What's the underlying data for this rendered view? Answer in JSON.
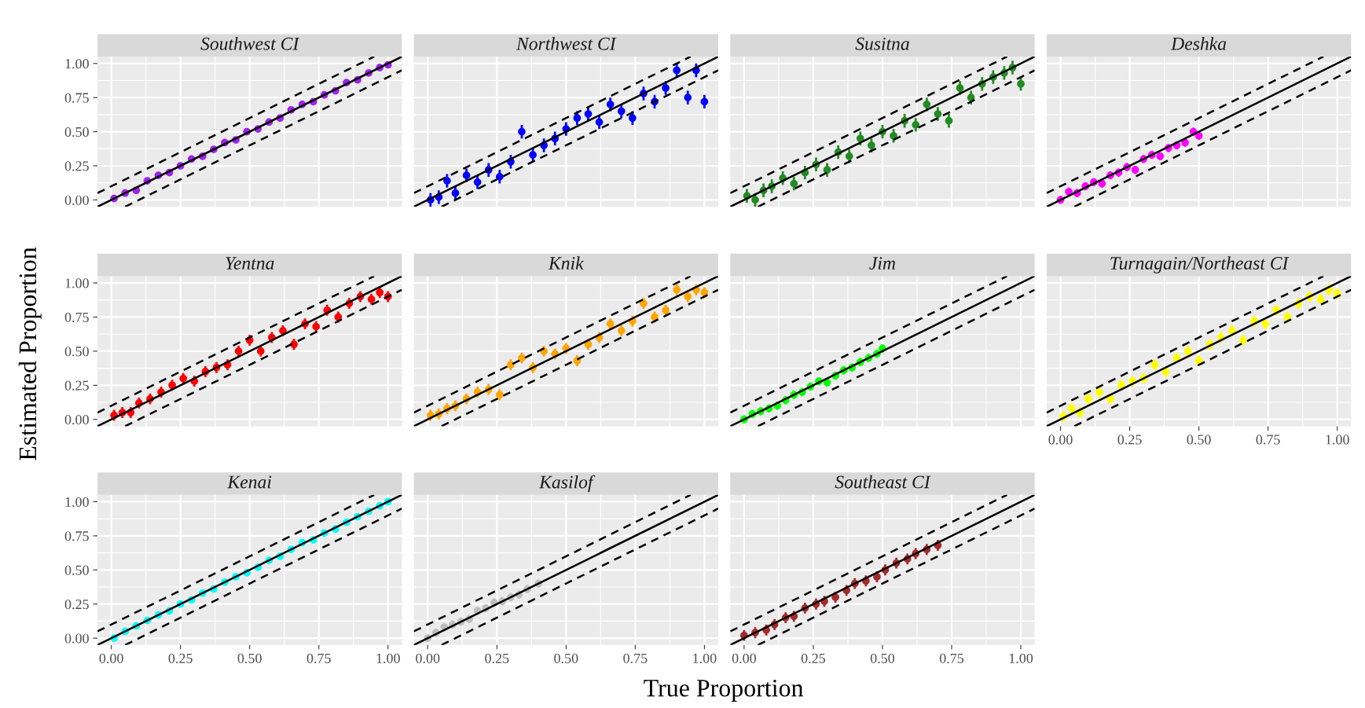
{
  "chart_data": [
    {
      "type": "scatter",
      "title": "Southwest CI",
      "ylabel": "Estimated Proportion",
      "tick_labels": "y",
      "grid": true,
      "xlim": [
        -0.05,
        1.05
      ],
      "ylim": [
        -0.05,
        1.05
      ],
      "xticks": [
        {
          "value": 0,
          "label": null
        },
        {
          "value": 0.25,
          "label": null
        },
        {
          "value": 0.5,
          "label": null
        },
        {
          "value": 0.75,
          "label": null
        },
        {
          "value": 1,
          "label": null
        }
      ],
      "yticks": [
        {
          "value": 0,
          "label": "0.00"
        },
        {
          "value": 0.25,
          "label": "0.25"
        },
        {
          "value": 0.5,
          "label": "0.50"
        },
        {
          "value": 0.75,
          "label": "0.75"
        },
        {
          "value": 1,
          "label": "1.00"
        }
      ],
      "series": [
        {
          "marker": "circle",
          "color": "#a020f0",
          "x": [
            0.01,
            0.05,
            0.09,
            0.13,
            0.17,
            0.21,
            0.25,
            0.29,
            0.33,
            0.37,
            0.41,
            0.45,
            0.49,
            0.53,
            0.57,
            0.61,
            0.65,
            0.69,
            0.73,
            0.77,
            0.81,
            0.85,
            0.89,
            0.93,
            0.97,
            1.0
          ],
          "values": [
            0.01,
            0.05,
            0.07,
            0.14,
            0.18,
            0.2,
            0.25,
            0.3,
            0.32,
            0.37,
            0.42,
            0.44,
            0.5,
            0.52,
            0.57,
            0.6,
            0.66,
            0.7,
            0.72,
            0.77,
            0.8,
            0.86,
            0.88,
            0.93,
            0.97,
            0.99
          ],
          "errors": [
            0.02,
            0.02,
            0.02,
            0.02,
            0.02,
            0.02,
            0.02,
            0.02,
            0.02,
            0.02,
            0.02,
            0.02,
            0.02,
            0.02,
            0.02,
            0.02,
            0.02,
            0.02,
            0.02,
            0.02,
            0.02,
            0.02,
            0.02,
            0.02,
            0.02,
            0.02
          ]
        },
        {
          "type": "line",
          "color": "#000000",
          "line_style": "solid",
          "x": [
            -0.05,
            1.05
          ],
          "values": [
            -0.05,
            1.05
          ]
        },
        {
          "type": "line",
          "color": "#000000",
          "line_style": "dashed",
          "x": [
            -0.05,
            0.95
          ],
          "values": [
            0.05,
            1.05
          ]
        },
        {
          "type": "line",
          "color": "#000000",
          "line_style": "dashed",
          "x": [
            0.05,
            1.05
          ],
          "values": [
            -0.05,
            0.95
          ]
        }
      ]
    },
    {
      "type": "scatter",
      "title": "Northwest CI",
      "tick_labels": false,
      "grid": true,
      "xlim": [
        -0.05,
        1.05
      ],
      "ylim": [
        -0.05,
        1.05
      ],
      "xticks": [
        {
          "value": 0,
          "label": null
        },
        {
          "value": 0.25,
          "label": null
        },
        {
          "value": 0.5,
          "label": null
        },
        {
          "value": 0.75,
          "label": null
        },
        {
          "value": 1,
          "label": null
        }
      ],
      "yticks": [
        {
          "value": 0,
          "label": null
        },
        {
          "value": 0.25,
          "label": null
        },
        {
          "value": 0.5,
          "label": null
        },
        {
          "value": 0.75,
          "label": null
        },
        {
          "value": 1,
          "label": null
        }
      ],
      "series": [
        {
          "marker": "circle",
          "color": "#0000ff",
          "x": [
            0.01,
            0.04,
            0.07,
            0.1,
            0.14,
            0.18,
            0.22,
            0.26,
            0.3,
            0.34,
            0.38,
            0.42,
            0.46,
            0.5,
            0.54,
            0.58,
            0.62,
            0.66,
            0.7,
            0.74,
            0.78,
            0.82,
            0.86,
            0.9,
            0.94,
            0.97,
            1.0
          ],
          "values": [
            0.0,
            0.02,
            0.14,
            0.05,
            0.18,
            0.13,
            0.22,
            0.17,
            0.28,
            0.5,
            0.33,
            0.4,
            0.45,
            0.52,
            0.6,
            0.63,
            0.57,
            0.7,
            0.65,
            0.6,
            0.78,
            0.72,
            0.82,
            0.95,
            0.75,
            0.95,
            0.72
          ],
          "errors": [
            0.05,
            0.05,
            0.05,
            0.05,
            0.05,
            0.05,
            0.05,
            0.05,
            0.05,
            0.05,
            0.05,
            0.05,
            0.05,
            0.05,
            0.05,
            0.05,
            0.05,
            0.05,
            0.05,
            0.05,
            0.05,
            0.05,
            0.05,
            0.05,
            0.05,
            0.05,
            0.05
          ]
        },
        {
          "type": "line",
          "color": "#000000",
          "line_style": "solid",
          "x": [
            -0.05,
            1.05
          ],
          "values": [
            -0.05,
            1.05
          ]
        },
        {
          "type": "line",
          "color": "#000000",
          "line_style": "dashed",
          "x": [
            -0.05,
            0.95
          ],
          "values": [
            0.05,
            1.05
          ]
        },
        {
          "type": "line",
          "color": "#000000",
          "line_style": "dashed",
          "x": [
            0.05,
            1.05
          ],
          "values": [
            -0.05,
            0.95
          ]
        }
      ]
    },
    {
      "type": "scatter",
      "title": "Susitna",
      "tick_labels": false,
      "grid": true,
      "xlim": [
        -0.05,
        1.05
      ],
      "ylim": [
        -0.05,
        1.05
      ],
      "xticks": [
        {
          "value": 0,
          "label": null
        },
        {
          "value": 0.25,
          "label": null
        },
        {
          "value": 0.5,
          "label": null
        },
        {
          "value": 0.75,
          "label": null
        },
        {
          "value": 1,
          "label": null
        }
      ],
      "yticks": [
        {
          "value": 0,
          "label": null
        },
        {
          "value": 0.25,
          "label": null
        },
        {
          "value": 0.5,
          "label": null
        },
        {
          "value": 0.75,
          "label": null
        },
        {
          "value": 1,
          "label": null
        }
      ],
      "series": [
        {
          "marker": "circle",
          "color": "#228b22",
          "x": [
            0.01,
            0.04,
            0.07,
            0.1,
            0.14,
            0.18,
            0.22,
            0.26,
            0.3,
            0.34,
            0.38,
            0.42,
            0.46,
            0.5,
            0.54,
            0.58,
            0.62,
            0.66,
            0.7,
            0.74,
            0.78,
            0.82,
            0.86,
            0.9,
            0.94,
            0.97,
            1.0
          ],
          "values": [
            0.03,
            0.0,
            0.07,
            0.1,
            0.16,
            0.12,
            0.2,
            0.26,
            0.22,
            0.35,
            0.32,
            0.45,
            0.4,
            0.5,
            0.47,
            0.58,
            0.55,
            0.7,
            0.63,
            0.58,
            0.82,
            0.75,
            0.85,
            0.9,
            0.93,
            0.97,
            0.85
          ],
          "errors": [
            0.05,
            0.05,
            0.05,
            0.05,
            0.05,
            0.05,
            0.05,
            0.05,
            0.05,
            0.05,
            0.05,
            0.05,
            0.05,
            0.05,
            0.05,
            0.05,
            0.05,
            0.05,
            0.05,
            0.05,
            0.05,
            0.05,
            0.05,
            0.05,
            0.05,
            0.05,
            0.05
          ]
        },
        {
          "type": "line",
          "color": "#000000",
          "line_style": "solid",
          "x": [
            -0.05,
            1.05
          ],
          "values": [
            -0.05,
            1.05
          ]
        },
        {
          "type": "line",
          "color": "#000000",
          "line_style": "dashed",
          "x": [
            -0.05,
            0.95
          ],
          "values": [
            0.05,
            1.05
          ]
        },
        {
          "type": "line",
          "color": "#000000",
          "line_style": "dashed",
          "x": [
            0.05,
            1.05
          ],
          "values": [
            -0.05,
            0.95
          ]
        }
      ]
    },
    {
      "type": "scatter",
      "title": "Deshka",
      "tick_labels": false,
      "grid": true,
      "xlim": [
        -0.05,
        1.05
      ],
      "ylim": [
        -0.05,
        1.05
      ],
      "xticks": [
        {
          "value": 0,
          "label": null
        },
        {
          "value": 0.25,
          "label": null
        },
        {
          "value": 0.5,
          "label": null
        },
        {
          "value": 0.75,
          "label": null
        },
        {
          "value": 1,
          "label": null
        }
      ],
      "yticks": [
        {
          "value": 0,
          "label": null
        },
        {
          "value": 0.25,
          "label": null
        },
        {
          "value": 0.5,
          "label": null
        },
        {
          "value": 0.75,
          "label": null
        },
        {
          "value": 1,
          "label": null
        }
      ],
      "series": [
        {
          "marker": "circle",
          "color": "#ff00ff",
          "x": [
            0.0,
            0.03,
            0.06,
            0.09,
            0.12,
            0.15,
            0.18,
            0.21,
            0.24,
            0.27,
            0.3,
            0.33,
            0.36,
            0.39,
            0.42,
            0.45,
            0.48,
            0.5
          ],
          "values": [
            0.0,
            0.06,
            0.05,
            0.1,
            0.13,
            0.12,
            0.18,
            0.2,
            0.24,
            0.22,
            0.3,
            0.33,
            0.32,
            0.38,
            0.4,
            0.42,
            0.5,
            0.47
          ],
          "errors": [
            0.03,
            0.03,
            0.03,
            0.03,
            0.03,
            0.03,
            0.03,
            0.03,
            0.03,
            0.03,
            0.03,
            0.03,
            0.03,
            0.03,
            0.03,
            0.03,
            0.03,
            0.03
          ]
        },
        {
          "type": "line",
          "color": "#000000",
          "line_style": "solid",
          "x": [
            -0.05,
            1.05
          ],
          "values": [
            -0.05,
            1.05
          ]
        },
        {
          "type": "line",
          "color": "#000000",
          "line_style": "dashed",
          "x": [
            -0.05,
            0.95
          ],
          "values": [
            0.05,
            1.05
          ]
        },
        {
          "type": "line",
          "color": "#000000",
          "line_style": "dashed",
          "x": [
            0.05,
            1.05
          ],
          "values": [
            -0.05,
            0.95
          ]
        }
      ]
    },
    {
      "type": "scatter",
      "title": "Yentna",
      "tick_labels": "y",
      "grid": true,
      "xlim": [
        -0.05,
        1.05
      ],
      "ylim": [
        -0.05,
        1.05
      ],
      "xticks": [
        {
          "value": 0,
          "label": null
        },
        {
          "value": 0.25,
          "label": null
        },
        {
          "value": 0.5,
          "label": null
        },
        {
          "value": 0.75,
          "label": null
        },
        {
          "value": 1,
          "label": null
        }
      ],
      "yticks": [
        {
          "value": 0,
          "label": "0.00"
        },
        {
          "value": 0.25,
          "label": "0.25"
        },
        {
          "value": 0.5,
          "label": "0.50"
        },
        {
          "value": 0.75,
          "label": "0.75"
        },
        {
          "value": 1,
          "label": "1.00"
        }
      ],
      "series": [
        {
          "marker": "circle",
          "color": "#ff0000",
          "x": [
            0.01,
            0.04,
            0.07,
            0.1,
            0.14,
            0.18,
            0.22,
            0.26,
            0.3,
            0.34,
            0.38,
            0.42,
            0.46,
            0.5,
            0.54,
            0.58,
            0.62,
            0.66,
            0.7,
            0.74,
            0.78,
            0.82,
            0.86,
            0.9,
            0.94,
            0.97,
            1.0
          ],
          "values": [
            0.03,
            0.05,
            0.05,
            0.12,
            0.15,
            0.2,
            0.25,
            0.3,
            0.28,
            0.35,
            0.38,
            0.4,
            0.5,
            0.58,
            0.5,
            0.6,
            0.65,
            0.55,
            0.7,
            0.68,
            0.8,
            0.75,
            0.85,
            0.9,
            0.88,
            0.93,
            0.9
          ],
          "errors": [
            0.04,
            0.04,
            0.04,
            0.04,
            0.04,
            0.04,
            0.04,
            0.04,
            0.04,
            0.04,
            0.04,
            0.04,
            0.04,
            0.04,
            0.04,
            0.04,
            0.04,
            0.04,
            0.04,
            0.04,
            0.04,
            0.04,
            0.04,
            0.04,
            0.04,
            0.04,
            0.04
          ]
        },
        {
          "type": "line",
          "color": "#000000",
          "line_style": "solid",
          "x": [
            -0.05,
            1.05
          ],
          "values": [
            -0.05,
            1.05
          ]
        },
        {
          "type": "line",
          "color": "#000000",
          "line_style": "dashed",
          "x": [
            -0.05,
            0.95
          ],
          "values": [
            0.05,
            1.05
          ]
        },
        {
          "type": "line",
          "color": "#000000",
          "line_style": "dashed",
          "x": [
            0.05,
            1.05
          ],
          "values": [
            -0.05,
            0.95
          ]
        }
      ]
    },
    {
      "type": "scatter",
      "title": "Knik",
      "tick_labels": false,
      "grid": true,
      "xlim": [
        -0.05,
        1.05
      ],
      "ylim": [
        -0.05,
        1.05
      ],
      "xticks": [
        {
          "value": 0,
          "label": null
        },
        {
          "value": 0.25,
          "label": null
        },
        {
          "value": 0.5,
          "label": null
        },
        {
          "value": 0.75,
          "label": null
        },
        {
          "value": 1,
          "label": null
        }
      ],
      "yticks": [
        {
          "value": 0,
          "label": null
        },
        {
          "value": 0.25,
          "label": null
        },
        {
          "value": 0.5,
          "label": null
        },
        {
          "value": 0.75,
          "label": null
        },
        {
          "value": 1,
          "label": null
        }
      ],
      "series": [
        {
          "marker": "circle",
          "color": "#ffa500",
          "x": [
            0.01,
            0.04,
            0.07,
            0.1,
            0.14,
            0.18,
            0.22,
            0.26,
            0.3,
            0.34,
            0.38,
            0.42,
            0.46,
            0.5,
            0.54,
            0.58,
            0.62,
            0.66,
            0.7,
            0.74,
            0.78,
            0.82,
            0.86,
            0.9,
            0.94,
            0.97,
            1.0
          ],
          "values": [
            0.03,
            0.04,
            0.08,
            0.1,
            0.15,
            0.2,
            0.22,
            0.18,
            0.4,
            0.45,
            0.38,
            0.5,
            0.48,
            0.52,
            0.43,
            0.55,
            0.6,
            0.7,
            0.65,
            0.72,
            0.85,
            0.75,
            0.8,
            0.95,
            0.9,
            0.95,
            0.93
          ],
          "errors": [
            0.04,
            0.04,
            0.04,
            0.04,
            0.04,
            0.04,
            0.04,
            0.04,
            0.04,
            0.04,
            0.04,
            0.04,
            0.04,
            0.04,
            0.04,
            0.04,
            0.04,
            0.04,
            0.04,
            0.04,
            0.04,
            0.04,
            0.04,
            0.04,
            0.04,
            0.04,
            0.04
          ]
        },
        {
          "type": "line",
          "color": "#000000",
          "line_style": "solid",
          "x": [
            -0.05,
            1.05
          ],
          "values": [
            -0.05,
            1.05
          ]
        },
        {
          "type": "line",
          "color": "#000000",
          "line_style": "dashed",
          "x": [
            -0.05,
            0.95
          ],
          "values": [
            0.05,
            1.05
          ]
        },
        {
          "type": "line",
          "color": "#000000",
          "line_style": "dashed",
          "x": [
            0.05,
            1.05
          ],
          "values": [
            -0.05,
            0.95
          ]
        }
      ]
    },
    {
      "type": "scatter",
      "title": "Jim",
      "tick_labels": false,
      "grid": true,
      "xlim": [
        -0.05,
        1.05
      ],
      "ylim": [
        -0.05,
        1.05
      ],
      "xticks": [
        {
          "value": 0,
          "label": null
        },
        {
          "value": 0.25,
          "label": null
        },
        {
          "value": 0.5,
          "label": null
        },
        {
          "value": 0.75,
          "label": null
        },
        {
          "value": 1,
          "label": null
        }
      ],
      "yticks": [
        {
          "value": 0,
          "label": null
        },
        {
          "value": 0.25,
          "label": null
        },
        {
          "value": 0.5,
          "label": null
        },
        {
          "value": 0.75,
          "label": null
        },
        {
          "value": 1,
          "label": null
        }
      ],
      "series": [
        {
          "marker": "circle",
          "color": "#00ff00",
          "x": [
            0.0,
            0.03,
            0.06,
            0.09,
            0.12,
            0.15,
            0.18,
            0.21,
            0.24,
            0.27,
            0.3,
            0.33,
            0.36,
            0.39,
            0.42,
            0.45,
            0.48,
            0.5
          ],
          "values": [
            0.0,
            0.04,
            0.06,
            0.08,
            0.1,
            0.14,
            0.18,
            0.2,
            0.24,
            0.28,
            0.27,
            0.32,
            0.36,
            0.38,
            0.42,
            0.45,
            0.48,
            0.52
          ],
          "errors": [
            0.03,
            0.03,
            0.03,
            0.03,
            0.03,
            0.03,
            0.03,
            0.03,
            0.03,
            0.03,
            0.03,
            0.03,
            0.03,
            0.03,
            0.03,
            0.03,
            0.03,
            0.03
          ]
        },
        {
          "type": "line",
          "color": "#000000",
          "line_style": "solid",
          "x": [
            -0.05,
            1.05
          ],
          "values": [
            -0.05,
            1.05
          ]
        },
        {
          "type": "line",
          "color": "#000000",
          "line_style": "dashed",
          "x": [
            -0.05,
            0.95
          ],
          "values": [
            0.05,
            1.05
          ]
        },
        {
          "type": "line",
          "color": "#000000",
          "line_style": "dashed",
          "x": [
            0.05,
            1.05
          ],
          "values": [
            -0.05,
            0.95
          ]
        }
      ]
    },
    {
      "type": "scatter",
      "title": "Turnagain/Northeast CI",
      "tick_labels": "x",
      "grid": true,
      "xlim": [
        -0.05,
        1.05
      ],
      "ylim": [
        -0.05,
        1.05
      ],
      "xticks": [
        {
          "value": 0,
          "label": "0.00"
        },
        {
          "value": 0.25,
          "label": "0.25"
        },
        {
          "value": 0.5,
          "label": "0.50"
        },
        {
          "value": 0.75,
          "label": "0.75"
        },
        {
          "value": 1,
          "label": "1.00"
        }
      ],
      "yticks": [
        {
          "value": 0,
          "label": null
        },
        {
          "value": 0.25,
          "label": null
        },
        {
          "value": 0.5,
          "label": null
        },
        {
          "value": 0.75,
          "label": null
        },
        {
          "value": 1,
          "label": null
        }
      ],
      "series": [
        {
          "marker": "circle",
          "color": "#ffff00",
          "x": [
            0.01,
            0.04,
            0.07,
            0.1,
            0.14,
            0.18,
            0.22,
            0.26,
            0.3,
            0.34,
            0.38,
            0.42,
            0.46,
            0.5,
            0.54,
            0.58,
            0.62,
            0.66,
            0.7,
            0.74,
            0.78,
            0.82,
            0.86,
            0.9,
            0.94,
            0.97,
            1.0
          ],
          "values": [
            0.02,
            0.08,
            0.05,
            0.15,
            0.2,
            0.15,
            0.25,
            0.28,
            0.3,
            0.4,
            0.35,
            0.45,
            0.5,
            0.43,
            0.55,
            0.6,
            0.65,
            0.58,
            0.72,
            0.7,
            0.8,
            0.75,
            0.85,
            0.9,
            0.88,
            0.95,
            0.92
          ],
          "errors": [
            0.04,
            0.04,
            0.04,
            0.04,
            0.04,
            0.04,
            0.04,
            0.04,
            0.04,
            0.04,
            0.04,
            0.04,
            0.04,
            0.04,
            0.04,
            0.04,
            0.04,
            0.04,
            0.04,
            0.04,
            0.04,
            0.04,
            0.04,
            0.04,
            0.04,
            0.04,
            0.04
          ]
        },
        {
          "type": "line",
          "color": "#000000",
          "line_style": "solid",
          "x": [
            -0.05,
            1.05
          ],
          "values": [
            -0.05,
            1.05
          ]
        },
        {
          "type": "line",
          "color": "#000000",
          "line_style": "dashed",
          "x": [
            -0.05,
            0.95
          ],
          "values": [
            0.05,
            1.05
          ]
        },
        {
          "type": "line",
          "color": "#000000",
          "line_style": "dashed",
          "x": [
            0.05,
            1.05
          ],
          "values": [
            -0.05,
            0.95
          ]
        }
      ]
    },
    {
      "type": "scatter",
      "title": "Kenai",
      "grid": true,
      "xlim": [
        -0.05,
        1.05
      ],
      "ylim": [
        -0.05,
        1.05
      ],
      "xticks": [
        {
          "value": 0,
          "label": "0.00"
        },
        {
          "value": 0.25,
          "label": "0.25"
        },
        {
          "value": 0.5,
          "label": "0.50"
        },
        {
          "value": 0.75,
          "label": "0.75"
        },
        {
          "value": 1,
          "label": "1.00"
        }
      ],
      "yticks": [
        {
          "value": 0,
          "label": "0.00"
        },
        {
          "value": 0.25,
          "label": "0.25"
        },
        {
          "value": 0.5,
          "label": "0.50"
        },
        {
          "value": 0.75,
          "label": "0.75"
        },
        {
          "value": 1,
          "label": "1.00"
        }
      ],
      "series": [
        {
          "marker": "circle",
          "color": "#00ffff",
          "x": [
            0.01,
            0.05,
            0.09,
            0.13,
            0.17,
            0.21,
            0.25,
            0.29,
            0.33,
            0.37,
            0.41,
            0.45,
            0.49,
            0.53,
            0.57,
            0.61,
            0.65,
            0.69,
            0.73,
            0.77,
            0.81,
            0.85,
            0.89,
            0.93,
            0.97,
            1.0
          ],
          "values": [
            0.0,
            0.05,
            0.09,
            0.13,
            0.17,
            0.2,
            0.25,
            0.28,
            0.33,
            0.36,
            0.41,
            0.45,
            0.48,
            0.52,
            0.57,
            0.6,
            0.65,
            0.7,
            0.72,
            0.77,
            0.8,
            0.85,
            0.89,
            0.93,
            0.97,
            1.0
          ],
          "errors": [
            0.02,
            0.02,
            0.02,
            0.02,
            0.02,
            0.02,
            0.02,
            0.02,
            0.02,
            0.02,
            0.02,
            0.02,
            0.02,
            0.02,
            0.02,
            0.02,
            0.02,
            0.02,
            0.02,
            0.02,
            0.02,
            0.02,
            0.02,
            0.02,
            0.02,
            0.02
          ]
        },
        {
          "type": "line",
          "color": "#000000",
          "line_style": "solid",
          "x": [
            -0.05,
            1.05
          ],
          "values": [
            -0.05,
            1.05
          ]
        },
        {
          "type": "line",
          "color": "#000000",
          "line_style": "dashed",
          "x": [
            -0.05,
            0.95
          ],
          "values": [
            0.05,
            1.05
          ]
        },
        {
          "type": "line",
          "color": "#000000",
          "line_style": "dashed",
          "x": [
            0.05,
            1.05
          ],
          "values": [
            -0.05,
            0.95
          ]
        }
      ]
    },
    {
      "type": "scatter",
      "title": "Kasilof",
      "xlabel": "True Proportion",
      "tick_labels": "x",
      "grid": true,
      "xlim": [
        -0.05,
        1.05
      ],
      "ylim": [
        -0.05,
        1.05
      ],
      "xticks": [
        {
          "value": 0,
          "label": "0.00"
        },
        {
          "value": 0.25,
          "label": "0.25"
        },
        {
          "value": 0.5,
          "label": "0.50"
        },
        {
          "value": 0.75,
          "label": "0.75"
        },
        {
          "value": 1,
          "label": "1.00"
        }
      ],
      "yticks": [
        {
          "value": 0,
          "label": null
        },
        {
          "value": 0.25,
          "label": null
        },
        {
          "value": 0.5,
          "label": null
        },
        {
          "value": 0.75,
          "label": null
        },
        {
          "value": 1,
          "label": null
        }
      ],
      "series": [
        {
          "marker": "circle",
          "color": "#bebebe",
          "x": [
            0.0,
            0.03,
            0.06,
            0.09,
            0.12,
            0.15,
            0.18,
            0.21,
            0.24,
            0.27,
            0.3,
            0.33,
            0.36,
            0.4
          ],
          "values": [
            0.0,
            0.04,
            0.08,
            0.1,
            0.12,
            0.14,
            0.2,
            0.22,
            0.26,
            0.27,
            0.3,
            0.32,
            0.36,
            0.4
          ],
          "errors": [
            0.03,
            0.03,
            0.03,
            0.03,
            0.03,
            0.03,
            0.03,
            0.03,
            0.03,
            0.03,
            0.03,
            0.03,
            0.03,
            0.03
          ]
        },
        {
          "type": "line",
          "color": "#000000",
          "line_style": "solid",
          "x": [
            -0.05,
            1.05
          ],
          "values": [
            -0.05,
            1.05
          ]
        },
        {
          "type": "line",
          "color": "#000000",
          "line_style": "dashed",
          "x": [
            -0.05,
            0.95
          ],
          "values": [
            0.05,
            1.05
          ]
        },
        {
          "type": "line",
          "color": "#000000",
          "line_style": "dashed",
          "x": [
            0.05,
            1.05
          ],
          "values": [
            -0.05,
            0.95
          ]
        }
      ]
    },
    {
      "type": "scatter",
      "title": "Southeast CI",
      "tick_labels": "x",
      "grid": true,
      "xlim": [
        -0.05,
        1.05
      ],
      "ylim": [
        -0.05,
        1.05
      ],
      "xticks": [
        {
          "value": 0,
          "label": "0.00"
        },
        {
          "value": 0.25,
          "label": "0.25"
        },
        {
          "value": 0.5,
          "label": "0.50"
        },
        {
          "value": 0.75,
          "label": "0.75"
        },
        {
          "value": 1,
          "label": "1.00"
        }
      ],
      "yticks": [
        {
          "value": 0,
          "label": null
        },
        {
          "value": 0.25,
          "label": null
        },
        {
          "value": 0.5,
          "label": null
        },
        {
          "value": 0.75,
          "label": null
        },
        {
          "value": 1,
          "label": null
        }
      ],
      "series": [
        {
          "marker": "circle",
          "color": "#a52a2a",
          "x": [
            0.0,
            0.04,
            0.08,
            0.11,
            0.15,
            0.18,
            0.22,
            0.26,
            0.29,
            0.33,
            0.37,
            0.4,
            0.44,
            0.48,
            0.51,
            0.55,
            0.59,
            0.62,
            0.66,
            0.7
          ],
          "values": [
            0.02,
            0.04,
            0.06,
            0.1,
            0.15,
            0.16,
            0.22,
            0.25,
            0.27,
            0.3,
            0.35,
            0.4,
            0.42,
            0.45,
            0.5,
            0.55,
            0.58,
            0.62,
            0.65,
            0.68
          ],
          "errors": [
            0.04,
            0.04,
            0.04,
            0.04,
            0.04,
            0.04,
            0.04,
            0.04,
            0.04,
            0.04,
            0.04,
            0.04,
            0.04,
            0.04,
            0.04,
            0.04,
            0.04,
            0.04,
            0.04,
            0.04
          ]
        },
        {
          "type": "line",
          "color": "#000000",
          "line_style": "solid",
          "x": [
            -0.05,
            1.05
          ],
          "values": [
            -0.05,
            1.05
          ]
        },
        {
          "type": "line",
          "color": "#000000",
          "line_style": "dashed",
          "x": [
            -0.05,
            0.95
          ],
          "values": [
            0.05,
            1.05
          ]
        },
        {
          "type": "line",
          "color": "#000000",
          "line_style": "dashed",
          "x": [
            0.05,
            1.05
          ],
          "values": [
            -0.05,
            0.95
          ]
        }
      ]
    }
  ]
}
